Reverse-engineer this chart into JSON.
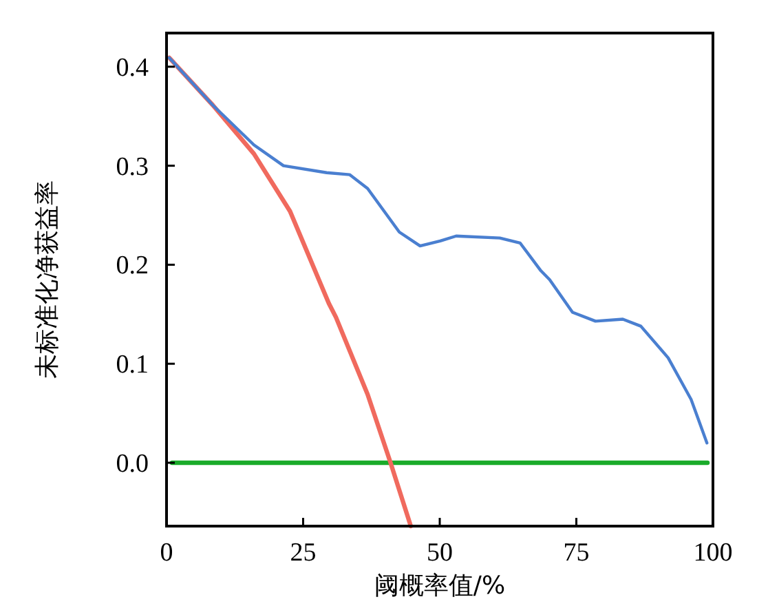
{
  "chart_data": {
    "type": "line",
    "xlabel": "阈概率值/%",
    "ylabel": "未标准化净获益率",
    "xlim": [
      0,
      100
    ],
    "ylim": [
      -0.064,
      0.434
    ],
    "xticks": [
      0,
      25,
      50,
      75,
      100
    ],
    "yticks": [
      {
        "value": 0,
        "label": "0.0"
      },
      0.1,
      0.2,
      0.3,
      0.4
    ],
    "series": [
      {
        "color": "#4a7fd0",
        "x": [
          0.5,
          8.5,
          16,
          21.4,
          29.3,
          33.5,
          36.8,
          42.6,
          46.4,
          50.1,
          53,
          61,
          64.7,
          68.5,
          70.1,
          74.3,
          78.5,
          83.5,
          86.8,
          91.8,
          96,
          98.9
        ],
        "values": [
          0.409,
          0.361,
          0.321,
          0.3,
          0.293,
          0.291,
          0.277,
          0.233,
          0.219,
          0.224,
          0.229,
          0.227,
          0.222,
          0.194,
          0.185,
          0.152,
          0.143,
          0.145,
          0.138,
          0.106,
          0.064,
          0.02
        ]
      },
      {
        "color": "#f06a5e",
        "x": [
          0.5,
          8.5,
          16,
          22.6,
          29.7,
          31,
          36.8,
          41,
          44.7
        ],
        "values": [
          0.409,
          0.361,
          0.312,
          0.254,
          0.161,
          0.147,
          0.069,
          0,
          -0.064
        ]
      },
      {
        "color": "#1aab2a",
        "x": [
          1,
          99
        ],
        "values": [
          0,
          0
        ]
      }
    ]
  }
}
